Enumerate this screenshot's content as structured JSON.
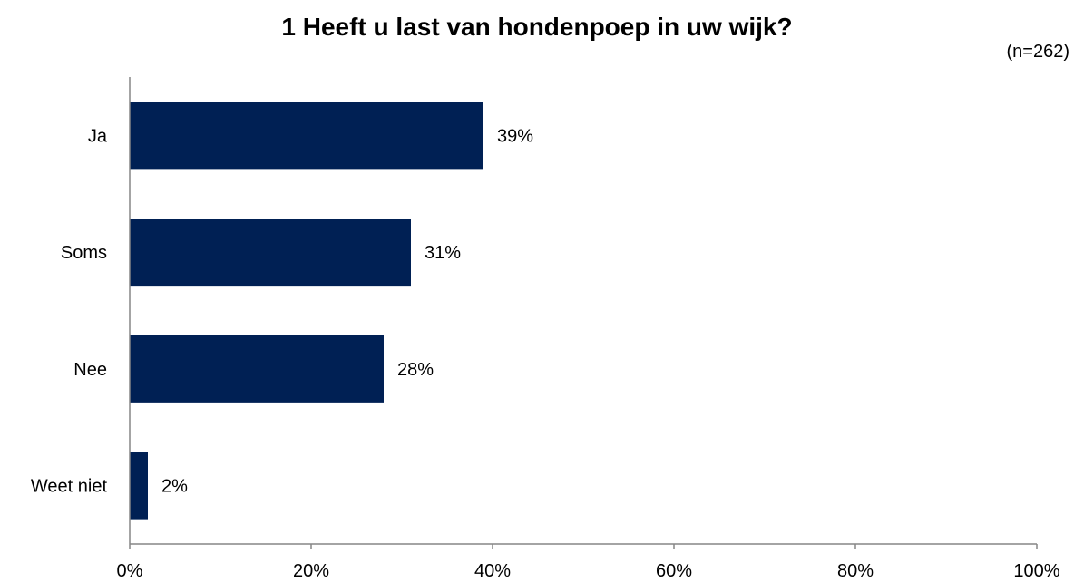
{
  "chart_data": {
    "type": "bar",
    "orientation": "horizontal",
    "title": "1 Heeft u last van hondenpoep in uw wijk?",
    "subtitle": "(n=262)",
    "categories": [
      "Ja",
      "Soms",
      "Nee",
      "Weet niet"
    ],
    "values": [
      39,
      31,
      28,
      2
    ],
    "value_labels": [
      "39%",
      "31%",
      "28%",
      "2%"
    ],
    "xlim": [
      0,
      100
    ],
    "x_ticks": [
      0,
      20,
      40,
      60,
      80,
      100
    ],
    "x_tick_labels": [
      "0%",
      "20%",
      "40%",
      "60%",
      "80%",
      "100%"
    ],
    "grid": false,
    "colors": {
      "bar": "#002054",
      "axis": "#868686"
    }
  }
}
